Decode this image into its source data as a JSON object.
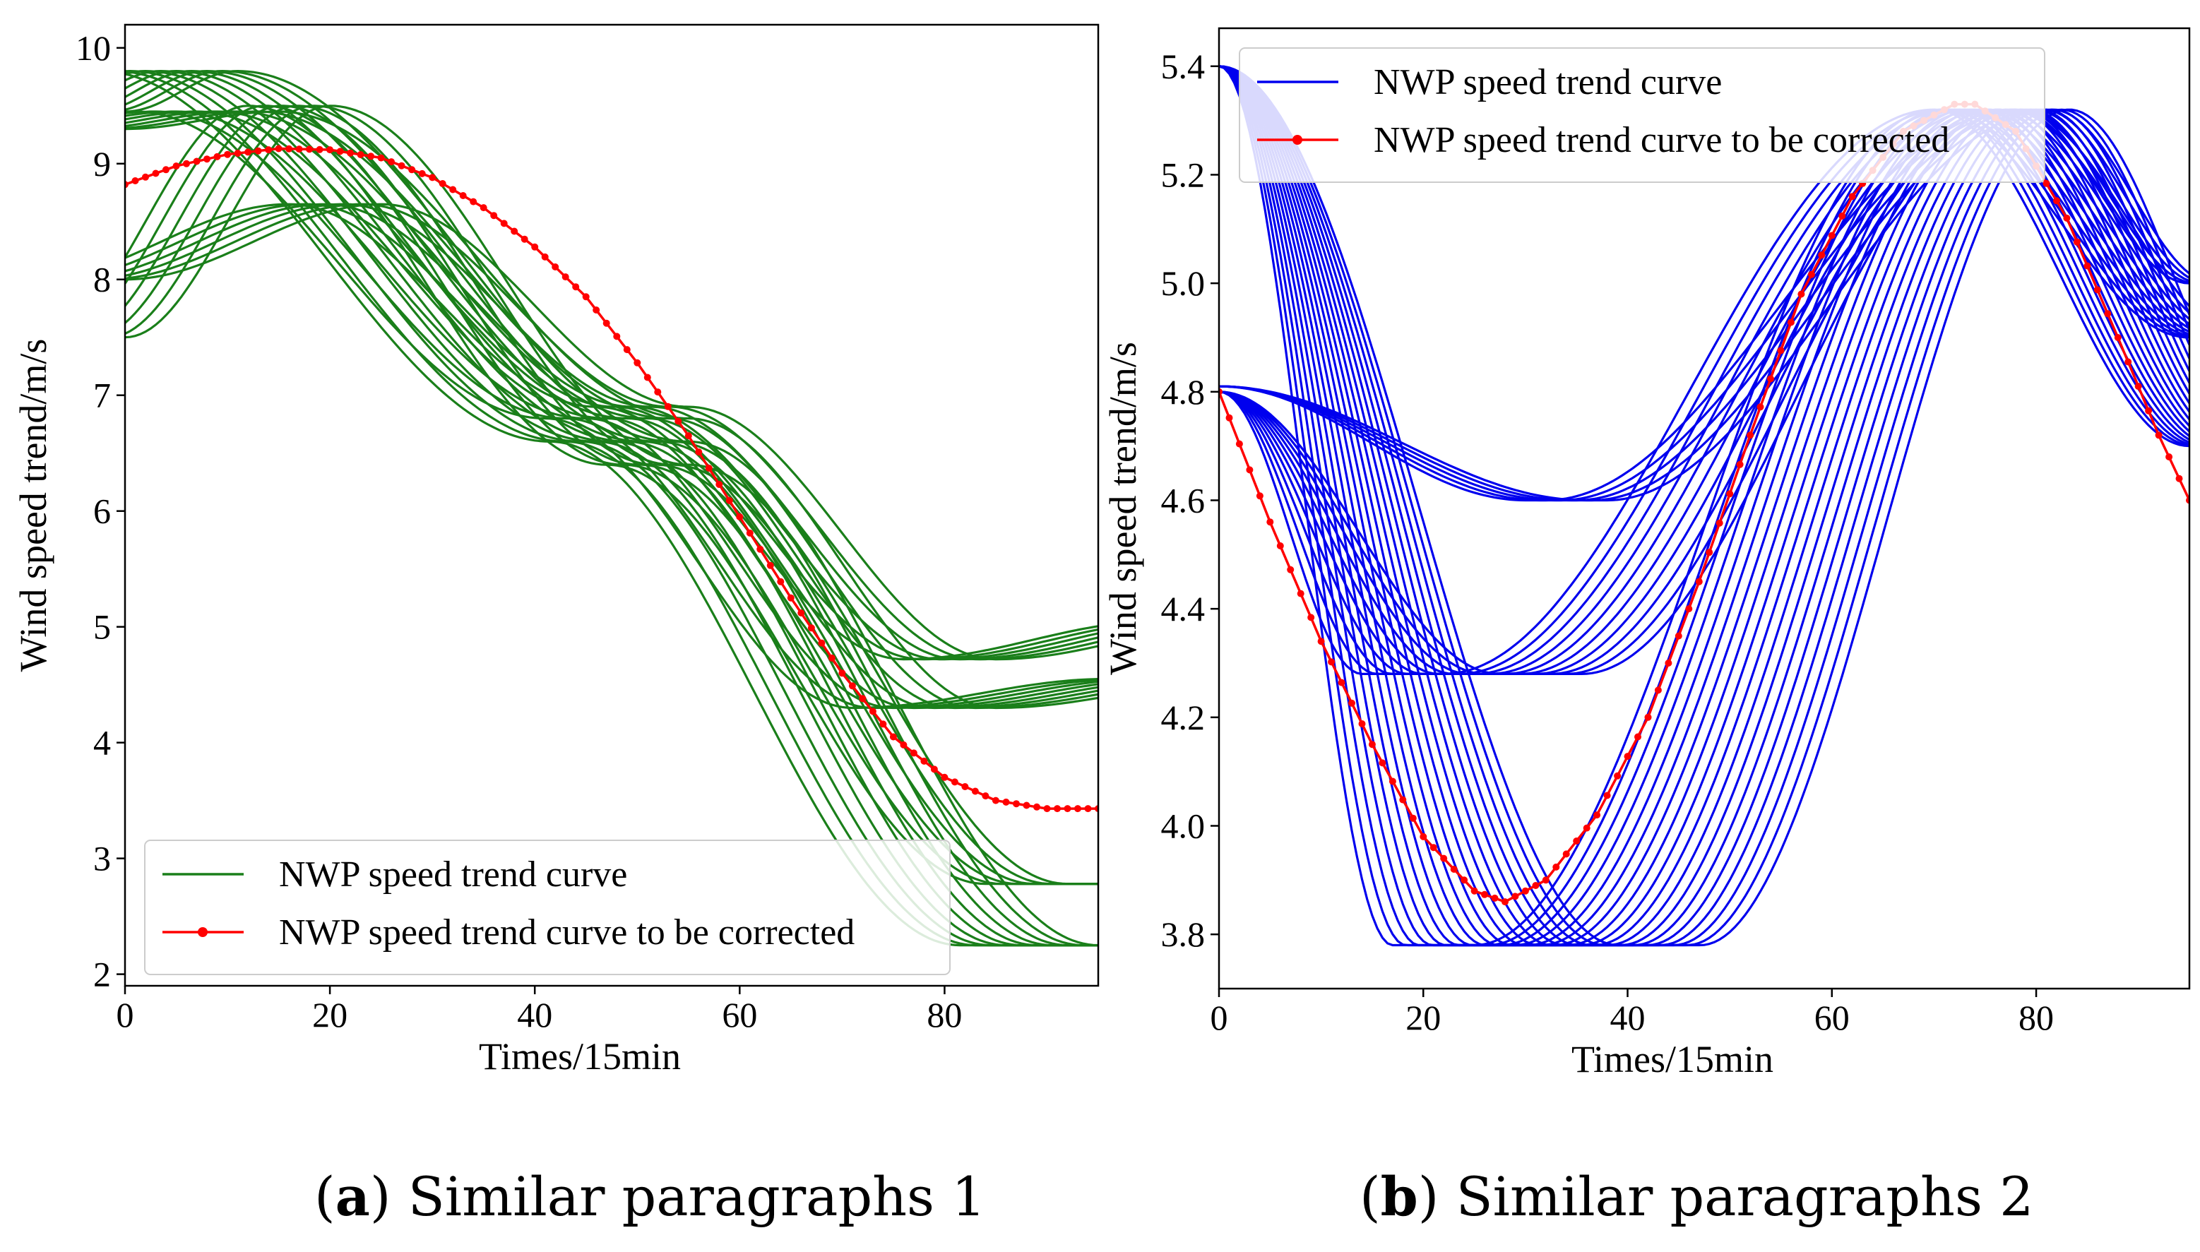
{
  "chart_data": [
    {
      "type": "line",
      "caption": {
        "letter": "a",
        "text": "Similar paragraphs 1"
      },
      "xlabel": "Times/15min",
      "ylabel": "Wind speed trend/m/s",
      "xlim": [
        0,
        95
      ],
      "ylim": [
        1.9,
        10.2
      ],
      "xticks": [
        0,
        20,
        40,
        60,
        80
      ],
      "yticks": [
        2,
        3,
        4,
        5,
        6,
        7,
        8,
        9,
        10
      ],
      "legend": {
        "placement": "lower-left"
      },
      "colors": {
        "background_curves": "#1a7f1a",
        "target_curve": "#ff0000"
      },
      "series": [
        {
          "name": "NWP speed trend curve",
          "role": "background",
          "groups": [
            {
              "shape": "bump",
              "count": 10,
              "x_start": 0,
              "x_step": 1.5,
              "y_start": 9.45,
              "peak": 9.8,
              "peak_x": 11,
              "mid": 6.6,
              "mid_x": 55,
              "end": 2.25,
              "end_x": 95
            },
            {
              "shape": "bump",
              "count": 8,
              "x_start": 0,
              "x_step": 2,
              "y_start": 9.3,
              "peak": 9.45,
              "peak_x": 15,
              "mid": 6.8,
              "mid_x": 55,
              "end": 4.3,
              "end_x": 85,
              "tail": 4.55
            },
            {
              "shape": "bump",
              "count": 6,
              "x_start": 0,
              "x_step": 1.8,
              "y_start": 8.0,
              "peak": 8.65,
              "peak_x": 25,
              "mid": 6.9,
              "mid_x": 55,
              "end": 4.72,
              "end_x": 85,
              "tail": 5.05
            },
            {
              "shape": "bump",
              "count": 6,
              "x_start": 0,
              "x_step": 1.6,
              "y_start": 7.5,
              "peak": 9.5,
              "peak_x": 20,
              "mid": 6.4,
              "mid_x": 55,
              "end": 2.78,
              "end_x": 92,
              "tail": 2.78
            }
          ]
        },
        {
          "name": "NWP speed trend curve to be corrected",
          "role": "target",
          "x": [
            0,
            5,
            10,
            15,
            20,
            25,
            30,
            35,
            40,
            45,
            50,
            55,
            60,
            65,
            70,
            75,
            80,
            85,
            90,
            95
          ],
          "y": [
            8.82,
            8.98,
            9.08,
            9.13,
            9.12,
            9.05,
            8.88,
            8.62,
            8.28,
            7.85,
            7.28,
            6.65,
            5.95,
            5.25,
            4.6,
            4.05,
            3.7,
            3.5,
            3.43,
            3.43
          ]
        }
      ]
    },
    {
      "type": "line",
      "caption": {
        "letter": "b",
        "text": "Similar paragraphs 2"
      },
      "xlabel": "Times/15min",
      "ylabel": "Wind speed trend/m/s",
      "xlim": [
        0,
        95
      ],
      "ylim": [
        3.7,
        5.47
      ],
      "xticks": [
        0,
        20,
        40,
        60,
        80
      ],
      "yticks": [
        3.8,
        4.0,
        4.2,
        4.4,
        4.6,
        4.8,
        5.0,
        5.2,
        5.4
      ],
      "legend": {
        "placement": "upper-left"
      },
      "colors": {
        "background_curves": "#0000ee",
        "target_curve": "#ff0000"
      },
      "series": [
        {
          "name": "NWP speed trend curve",
          "role": "background",
          "groups": [
            {
              "shape": "valley",
              "count": 18,
              "x_start": 0,
              "x_step": 1.3,
              "y_start": 5.4,
              "trough": 3.78,
              "trough_x": 17,
              "trough_len": 8,
              "peak": 5.32,
              "peak_x": 70,
              "end": 4.7,
              "end_x": 95
            },
            {
              "shape": "valley",
              "count": 10,
              "x_start": 0,
              "x_step": 1.5,
              "y_start": 4.8,
              "trough": 4.28,
              "trough_x": 14,
              "trough_len": 8,
              "peak": 5.32,
              "peak_x": 70,
              "end": 4.9,
              "end_x": 95
            },
            {
              "shape": "valley",
              "count": 5,
              "x_start": 0,
              "x_step": 1.5,
              "y_start": 4.81,
              "trough": 4.6,
              "trough_x": 30,
              "trough_len": 2,
              "peak": 5.32,
              "peak_x": 78,
              "end": 5.0,
              "end_x": 95
            }
          ]
        },
        {
          "name": "NWP speed trend curve to be corrected",
          "role": "target",
          "x": [
            0,
            5,
            10,
            15,
            20,
            25,
            28,
            32,
            37,
            42,
            47,
            52,
            57,
            62,
            67,
            72,
            74,
            78,
            83,
            88,
            92,
            95
          ],
          "y": [
            4.8,
            4.56,
            4.34,
            4.15,
            3.98,
            3.88,
            3.86,
            3.9,
            4.02,
            4.2,
            4.45,
            4.72,
            4.98,
            5.16,
            5.28,
            5.33,
            5.33,
            5.28,
            5.12,
            4.9,
            4.72,
            4.6
          ]
        }
      ]
    }
  ]
}
